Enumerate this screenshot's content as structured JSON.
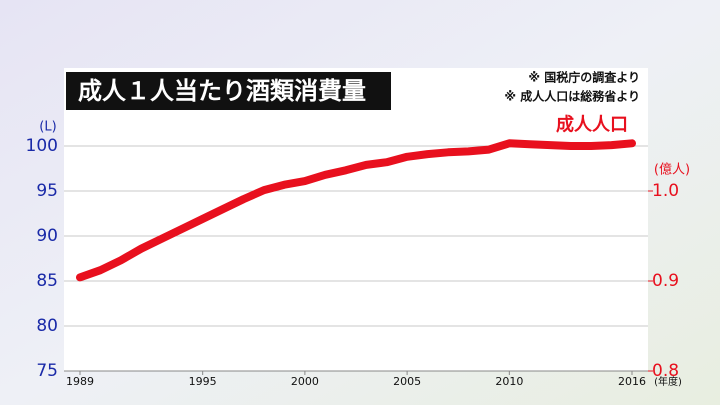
{
  "chart_data": {
    "type": "line",
    "title": "成人１人当たり酒類消費量",
    "notes": [
      "※ 国税庁の調査より",
      "※ 成人人口は総務省より"
    ],
    "y_label": "(L)",
    "y2_label": "(億人)",
    "x_label": "(年度)",
    "x": [
      1989,
      1990,
      1991,
      1992,
      1993,
      1994,
      1995,
      1996,
      1997,
      1998,
      1999,
      2000,
      2001,
      2002,
      2003,
      2004,
      2005,
      2006,
      2007,
      2008,
      2009,
      2010,
      2011,
      2012,
      2013,
      2014,
      2015,
      2016
    ],
    "xlim": [
      1989,
      2016
    ],
    "xticks": [
      1989,
      1995,
      2000,
      2005,
      2010,
      2016
    ],
    "ylim": [
      75,
      108
    ],
    "yticks": [
      75,
      80,
      85,
      90,
      95,
      100
    ],
    "y2lim": [
      0.8,
      1.13
    ],
    "y2ticks": [
      0.8,
      0.9,
      {
        "value": 1,
        "label": "1.0"
      }
    ],
    "grid": true,
    "series": [
      {
        "name": "成人人口",
        "color": "#e8101e",
        "axis": "y2",
        "values": [
          0.904,
          0.912,
          0.923,
          0.936,
          0.947,
          0.958,
          0.969,
          0.98,
          0.991,
          1.001,
          1.007,
          1.011,
          1.018,
          1.023,
          1.029,
          1.032,
          1.038,
          1.041,
          1.043,
          1.044,
          1.046,
          1.053,
          1.052,
          1.051,
          1.05,
          1.05,
          1.051,
          1.053
        ]
      }
    ]
  }
}
